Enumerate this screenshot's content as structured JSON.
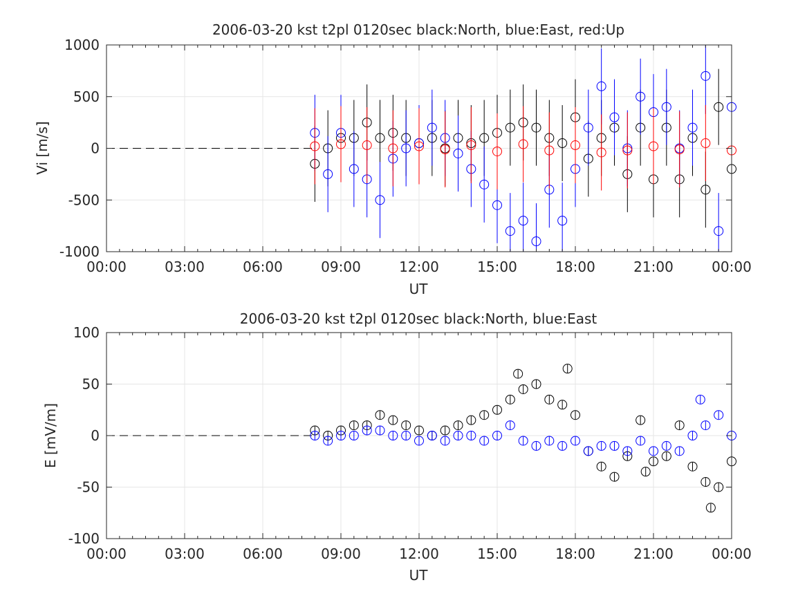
{
  "chart_data": [
    {
      "type": "scatter",
      "title": "2006-03-20 kst t2pl 0120sec black:North, blue:East, red:Up",
      "xlabel": "UT",
      "ylabel": "Vi [m/s]",
      "xlim": [
        0,
        24
      ],
      "ylim": [
        -1000,
        1000
      ],
      "x_ticks": [
        "00:00",
        "03:00",
        "06:00",
        "09:00",
        "12:00",
        "15:00",
        "18:00",
        "21:00",
        "00:00"
      ],
      "y_ticks": [
        "-1000",
        "-500",
        "0",
        "500",
        "1000"
      ],
      "grid": true,
      "reference_line": {
        "y": 0,
        "x_range": [
          0,
          8
        ],
        "style": "dashed"
      },
      "series": [
        {
          "name": "North",
          "color": "#000000",
          "marker": "circle",
          "error_bars": true,
          "x": [
            8.0,
            8.5,
            9.0,
            9.5,
            10.0,
            10.5,
            11.0,
            11.5,
            12.0,
            12.5,
            13.0,
            13.5,
            14.0,
            14.5,
            15.0,
            15.5,
            16.0,
            16.5,
            17.0,
            17.5,
            18.0,
            18.5,
            19.0,
            19.5,
            20.0,
            20.5,
            21.0,
            21.5,
            22.0,
            22.5,
            23.0,
            23.5,
            24.0
          ],
          "y": [
            -150,
            0,
            100,
            100,
            250,
            100,
            150,
            100,
            50,
            100,
            0,
            100,
            50,
            100,
            150,
            200,
            250,
            200,
            100,
            50,
            300,
            -100,
            100,
            200,
            -250,
            200,
            -300,
            200,
            -300,
            100,
            -400,
            400,
            -200
          ]
        },
        {
          "name": "East",
          "color": "#0000ff",
          "marker": "circle",
          "error_bars": true,
          "x": [
            8.0,
            8.5,
            9.0,
            9.5,
            10.0,
            10.5,
            11.0,
            11.5,
            12.0,
            12.5,
            13.0,
            13.5,
            14.0,
            14.5,
            15.0,
            15.5,
            16.0,
            16.5,
            17.0,
            17.5,
            18.0,
            18.5,
            19.0,
            19.5,
            20.0,
            20.5,
            21.0,
            21.5,
            22.0,
            22.5,
            23.0,
            23.5,
            24.0
          ],
          "y": [
            150,
            -250,
            150,
            -200,
            -300,
            -500,
            -100,
            0,
            50,
            200,
            100,
            -50,
            -200,
            -350,
            -550,
            -800,
            -700,
            -900,
            -400,
            -700,
            -200,
            200,
            600,
            300,
            0,
            500,
            350,
            400,
            0,
            200,
            700,
            -800,
            400
          ]
        },
        {
          "name": "Up",
          "color": "#ff0000",
          "marker": "circle",
          "error_bars": true,
          "x": [
            8.0,
            9.0,
            10.0,
            11.0,
            12.0,
            13.0,
            14.0,
            15.0,
            16.0,
            17.0,
            18.0,
            19.0,
            20.0,
            21.0,
            22.0,
            23.0,
            24.0
          ],
          "y": [
            20,
            40,
            30,
            0,
            20,
            -10,
            30,
            -30,
            40,
            -20,
            30,
            -40,
            -20,
            20,
            -10,
            50,
            -20
          ]
        }
      ]
    },
    {
      "type": "scatter",
      "title": "2006-03-20 kst t2pl 0120sec black:North, blue:East",
      "xlabel": "UT",
      "ylabel": "E [mV/m]",
      "xlim": [
        0,
        24
      ],
      "ylim": [
        -100,
        100
      ],
      "x_ticks": [
        "00:00",
        "03:00",
        "06:00",
        "09:00",
        "12:00",
        "15:00",
        "18:00",
        "21:00",
        "00:00"
      ],
      "y_ticks": [
        "-100",
        "-50",
        "0",
        "50",
        "100"
      ],
      "grid": true,
      "reference_line": {
        "y": 0,
        "x_range": [
          0,
          8
        ],
        "style": "dashed"
      },
      "series": [
        {
          "name": "North",
          "color": "#000000",
          "marker": "circle",
          "error_bars": true,
          "x": [
            8.0,
            8.5,
            9.0,
            9.5,
            10.0,
            10.5,
            11.0,
            11.5,
            12.0,
            12.5,
            13.0,
            13.5,
            14.0,
            14.5,
            15.0,
            15.5,
            15.8,
            16.0,
            16.5,
            17.0,
            17.5,
            17.7,
            18.0,
            18.5,
            19.0,
            19.5,
            20.0,
            20.5,
            20.7,
            21.0,
            21.5,
            22.0,
            22.5,
            23.0,
            23.2,
            23.5,
            24.0
          ],
          "y": [
            5,
            0,
            5,
            10,
            10,
            20,
            15,
            10,
            5,
            0,
            5,
            10,
            15,
            20,
            25,
            35,
            60,
            45,
            50,
            35,
            30,
            65,
            20,
            -15,
            -30,
            -40,
            -20,
            15,
            -35,
            -25,
            -20,
            10,
            -30,
            -45,
            -70,
            -50,
            -25
          ]
        },
        {
          "name": "East",
          "color": "#0000ff",
          "marker": "circle",
          "error_bars": true,
          "x": [
            8.0,
            8.5,
            9.0,
            9.5,
            10.0,
            10.5,
            11.0,
            11.5,
            12.0,
            12.5,
            13.0,
            13.5,
            14.0,
            14.5,
            15.0,
            15.5,
            16.0,
            16.5,
            17.0,
            17.5,
            18.0,
            18.5,
            19.0,
            19.5,
            20.0,
            20.5,
            21.0,
            21.5,
            22.0,
            22.5,
            22.8,
            23.0,
            23.5,
            24.0
          ],
          "y": [
            0,
            -5,
            0,
            0,
            5,
            5,
            0,
            0,
            -5,
            0,
            -5,
            0,
            0,
            -5,
            0,
            10,
            -5,
            -10,
            -5,
            -10,
            -5,
            -15,
            -10,
            -10,
            -15,
            -5,
            -15,
            -10,
            -15,
            0,
            35,
            10,
            20,
            0
          ]
        }
      ]
    }
  ]
}
